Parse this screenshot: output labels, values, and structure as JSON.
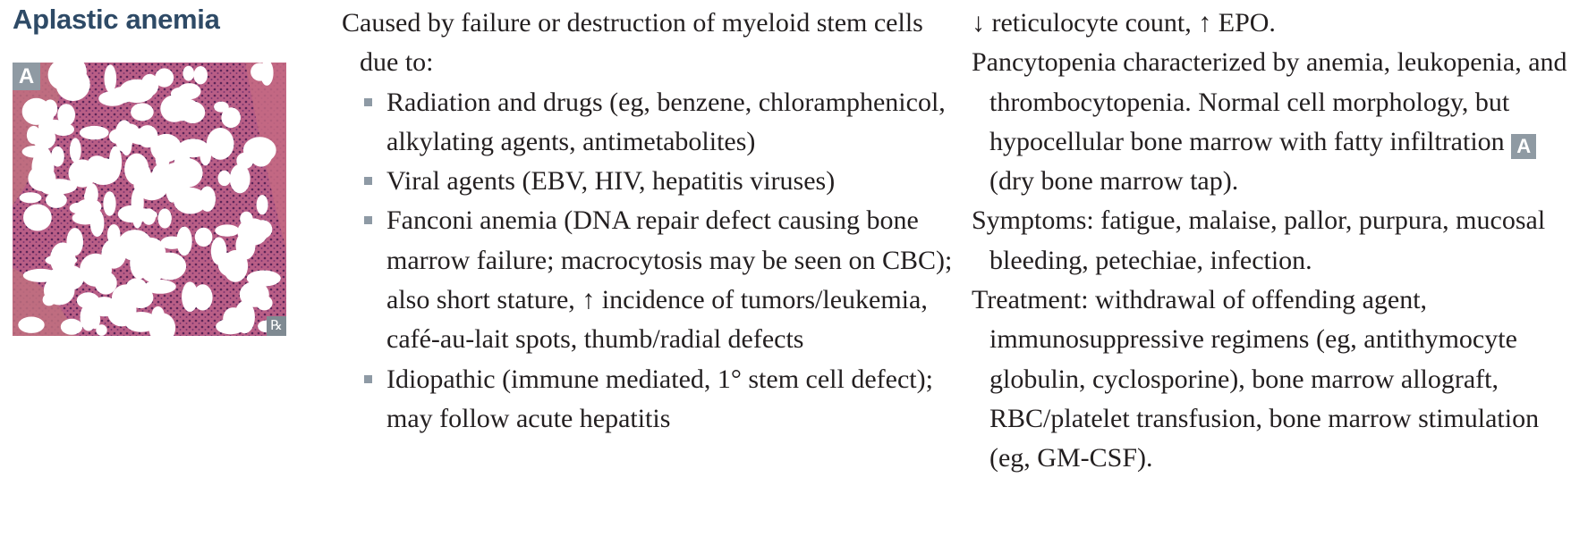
{
  "heading": "Aplastic anemia",
  "figure": {
    "tag": "A",
    "badge": "℞",
    "image": "bone-marrow-histology",
    "colors": {
      "tissue": "#b45d80",
      "fat": "#ffffff",
      "tag": "#8f9aa3"
    }
  },
  "causes": {
    "intro": "Caused by failure or destruction of myeloid stem cells due to:",
    "items": [
      "Radiation and drugs (eg, benzene, chloramphenicol, alkylating agents, antimetabolites)",
      "Viral agents (EBV, HIV, hepatitis viruses)",
      "Fanconi anemia (DNA repair defect causing bone marrow failure; macrocytosis may be seen on CBC); also short stature, ↑ incidence of tumors/leukemia, café-au-lait spots, thumb/radial defects",
      "Idiopathic (immune mediated, 1° stem cell defect); may follow acute hepatitis"
    ]
  },
  "findings": {
    "labs": "↓ reticulocyte count, ↑ EPO.",
    "pancytopenia_before": "Pancytopenia characterized by anemia, leukopenia, and thrombocytopenia. Normal cell morphology, but hypocellular bone marrow with fatty infiltration",
    "pancytopenia_tag": "A",
    "pancytopenia_after": "(dry bone marrow tap).",
    "symptoms": "Symptoms: fatigue, malaise, pallor, purpura, mucosal bleeding, petechiae, infection.",
    "treatment": "Treatment: withdrawal of offending agent, immunosuppressive regimens (eg, antithymocyte globulin, cyclosporine), bone marrow allograft, RBC/platelet transfusion, bone marrow stimulation (eg, GM-CSF)."
  },
  "colors": {
    "heading": "#2e4a66",
    "bullet": "#8e9aa5",
    "text": "#231f20"
  }
}
